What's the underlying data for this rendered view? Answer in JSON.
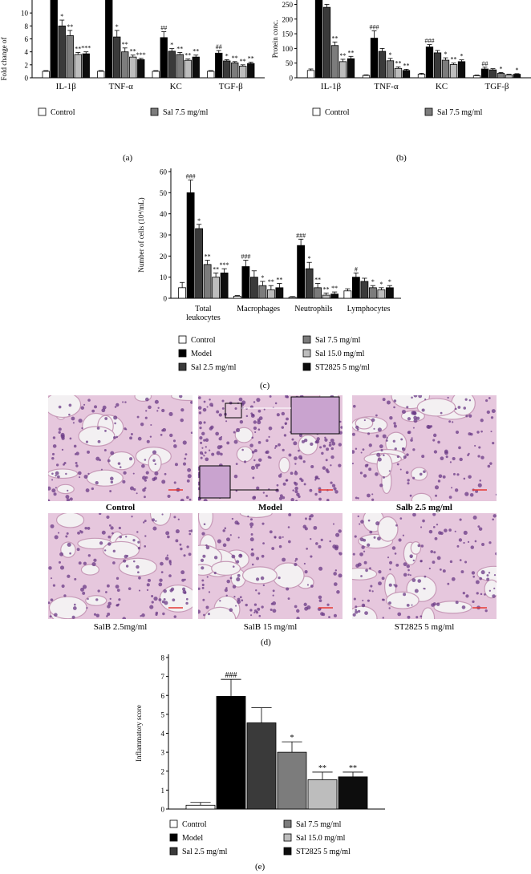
{
  "legend": {
    "control": "Control",
    "model": "Model",
    "sal25": "Sal 2.5 mg/ml",
    "sal75": "Sal 7.5 mg/ml",
    "sal150": "Sal 15.0 mg/ml",
    "st2825": "ST2825 5 mg/ml"
  },
  "colors": {
    "control": "#ffffff",
    "model": "#000000",
    "sal25": "#3a3a3a",
    "sal75": "#7c7c7c",
    "sal150": "#bdbdbd",
    "st2825": "#0d0d0d",
    "stain_bg": "#e6c7dd",
    "stain_cell": "#6a3a86"
  },
  "panel_labels": {
    "a": "(a)",
    "b": "(b)",
    "c": "(c)",
    "d": "(d)",
    "e": "(e)"
  },
  "chart_data": [
    {
      "id": "a",
      "type": "bar",
      "ylabel": "Fold change of",
      "ylim": [
        0,
        12
      ],
      "yticks": [
        "0",
        "2",
        "4",
        "6",
        "8",
        "10"
      ],
      "categories": [
        "IL-1β",
        "TNF-α",
        "KC",
        "TGF-β"
      ],
      "series": [
        {
          "name": "Control",
          "values": [
            1.0,
            1.0,
            1.0,
            1.0
          ],
          "errors": [
            0.1,
            0.1,
            0.1,
            0.1
          ],
          "sig": [
            "",
            "",
            "",
            ""
          ]
        },
        {
          "name": "Model",
          "values": [
            12.0,
            12.0,
            6.2,
            3.8
          ],
          "errors": [
            0,
            0,
            0.9,
            0.4
          ],
          "sig": [
            "",
            "",
            "##",
            "##"
          ]
        },
        {
          "name": "Sal 2.5 mg/ml",
          "values": [
            8.0,
            6.3,
            4.1,
            2.6
          ],
          "errors": [
            0.9,
            1.0,
            0.4,
            0.2
          ],
          "sig": [
            "*",
            "*",
            "*",
            "*"
          ]
        },
        {
          "name": "Sal 7.5 mg/ml",
          "values": [
            6.5,
            4.0,
            3.6,
            2.3
          ],
          "errors": [
            0.8,
            0.6,
            0.3,
            0.2
          ],
          "sig": [
            "**",
            "**",
            "**",
            "**"
          ]
        },
        {
          "name": "Sal 15.0 mg/ml",
          "values": [
            3.6,
            3.2,
            2.7,
            1.8
          ],
          "errors": [
            0.3,
            0.3,
            0.2,
            0.2
          ],
          "sig": [
            "**",
            "**",
            "**",
            "**"
          ]
        },
        {
          "name": "ST2825 5 mg/ml",
          "values": [
            3.7,
            2.8,
            3.2,
            2.2
          ],
          "errors": [
            0.3,
            0.2,
            0.3,
            0.2
          ],
          "sig": [
            "***",
            "***",
            "**",
            "**"
          ]
        }
      ]
    },
    {
      "id": "b",
      "type": "bar",
      "ylabel": "Protein conc.",
      "ylim": [
        0,
        265
      ],
      "yticks": [
        "0",
        "50",
        "100",
        "150",
        "200",
        "250"
      ],
      "categories": [
        "IL-1β",
        "TNF-α",
        "KC",
        "TGF-β"
      ],
      "series": [
        {
          "name": "Control",
          "values": [
            25,
            8,
            12,
            7
          ],
          "errors": [
            5,
            2,
            3,
            2
          ],
          "sig": [
            "",
            "",
            "",
            ""
          ]
        },
        {
          "name": "Model",
          "values": [
            265,
            135,
            105,
            30
          ],
          "errors": [
            0,
            25,
            8,
            6
          ],
          "sig": [
            "",
            "###",
            "###",
            "##"
          ]
        },
        {
          "name": "Sal 2.5 mg/ml",
          "values": [
            240,
            90,
            85,
            27
          ],
          "errors": [
            10,
            10,
            8,
            4
          ],
          "sig": [
            "",
            "",
            "",
            ""
          ]
        },
        {
          "name": "Sal 7.5 mg/ml",
          "values": [
            110,
            58,
            60,
            15
          ],
          "errors": [
            12,
            8,
            8,
            3
          ],
          "sig": [
            "**",
            "*",
            "*",
            "*"
          ]
        },
        {
          "name": "Sal 15.0 mg/ml",
          "values": [
            55,
            32,
            45,
            10
          ],
          "errors": [
            8,
            5,
            5,
            2
          ],
          "sig": [
            "**",
            "**",
            "**",
            ""
          ]
        },
        {
          "name": "ST2825 5 mg/ml",
          "values": [
            65,
            25,
            55,
            12
          ],
          "errors": [
            8,
            4,
            6,
            2
          ],
          "sig": [
            "**",
            "**",
            "*",
            "*"
          ]
        }
      ]
    },
    {
      "id": "c",
      "type": "bar",
      "ylabel": "Number of cells (10⁴/mL)",
      "ylim": [
        0,
        60
      ],
      "yticks": [
        "0",
        "10",
        "20",
        "30",
        "40",
        "50",
        "60"
      ],
      "categories": [
        [
          "Total",
          "leukocytes"
        ],
        [
          "Macrophages"
        ],
        [
          "Neutrophils"
        ],
        [
          "Lymphocytes"
        ]
      ],
      "series": [
        {
          "name": "Control",
          "values": [
            5,
            1,
            0.5,
            3.5
          ],
          "errors": [
            2.5,
            0.3,
            0.3,
            1
          ],
          "sig": [
            "",
            "",
            "",
            ""
          ]
        },
        {
          "name": "Model",
          "values": [
            50,
            15,
            25,
            10
          ],
          "errors": [
            6,
            3,
            3,
            2
          ],
          "sig": [
            "###",
            "###",
            "###",
            "#"
          ]
        },
        {
          "name": "Sal 2.5 mg/ml",
          "values": [
            33,
            10,
            14,
            8
          ],
          "errors": [
            2,
            3,
            3,
            1.5
          ],
          "sig": [
            "*",
            "",
            "*",
            ""
          ]
        },
        {
          "name": "Sal 7.5 mg/ml",
          "values": [
            16,
            6,
            5,
            5
          ],
          "errors": [
            2,
            2,
            2,
            1
          ],
          "sig": [
            "**",
            "*",
            "**",
            "*"
          ]
        },
        {
          "name": "Sal 15.0 mg/ml",
          "values": [
            10,
            4,
            1.5,
            4
          ],
          "errors": [
            2,
            2,
            1,
            1
          ],
          "sig": [
            "**",
            "**",
            "**",
            "*"
          ]
        },
        {
          "name": "ST2825 5 mg/ml",
          "values": [
            12,
            5,
            2,
            5
          ],
          "errors": [
            2,
            2,
            1,
            1
          ],
          "sig": [
            "***",
            "**",
            "**",
            "*"
          ]
        }
      ]
    },
    {
      "id": "e",
      "type": "bar",
      "ylabel": "Inflammatory score",
      "ylim": [
        0,
        8
      ],
      "yticks": [
        "0",
        "1",
        "2",
        "3",
        "4",
        "5",
        "6",
        "7",
        "8"
      ],
      "categories": [
        ""
      ],
      "series": [
        {
          "name": "Control",
          "values": [
            0.2
          ],
          "errors": [
            0.15
          ],
          "sig": [
            ""
          ]
        },
        {
          "name": "Model",
          "values": [
            5.95
          ],
          "errors": [
            0.9
          ],
          "sig": [
            "###"
          ]
        },
        {
          "name": "Sal 2.5 mg/ml",
          "values": [
            4.55
          ],
          "errors": [
            0.8
          ],
          "sig": [
            ""
          ]
        },
        {
          "name": "Sal 7.5 mg/ml",
          "values": [
            3.0
          ],
          "errors": [
            0.55
          ],
          "sig": [
            "*"
          ]
        },
        {
          "name": "Sal 15.0 mg/ml",
          "values": [
            1.55
          ],
          "errors": [
            0.4
          ],
          "sig": [
            "**"
          ]
        },
        {
          "name": "ST2825 5 mg/ml",
          "values": [
            1.7
          ],
          "errors": [
            0.25
          ],
          "sig": [
            "**"
          ]
        }
      ]
    }
  ],
  "micrographs": [
    {
      "caption": "Control",
      "bold": true
    },
    {
      "caption": "Model",
      "bold": true
    },
    {
      "caption": "Salb 2.5 mg/ml",
      "bold": true
    },
    {
      "caption": "SalB 2.5mg/ml",
      "bold": false
    },
    {
      "caption": "SalB 15 mg/ml",
      "bold": false
    },
    {
      "caption": "ST2825 5 mg/ml",
      "bold": false
    }
  ]
}
